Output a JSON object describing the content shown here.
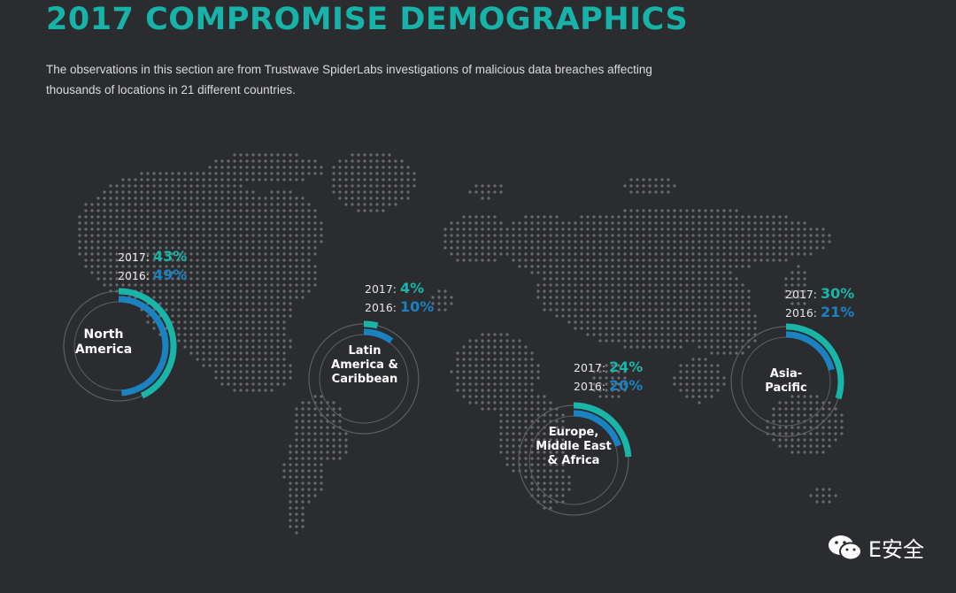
{
  "title": "2017 COMPROMISE DEMOGRAPHICS",
  "subtitle": "The observations in this section are from Trustwave SpiderLabs investigations of malicious data breaches affecting thousands of locations in 21 different countries.",
  "colors": {
    "c2017": "#19b5a8",
    "c2016": "#1a82c0",
    "ring": "#5d5e62",
    "background": "#2b2c30"
  },
  "year_labels": {
    "y2017": "2017:",
    "y2016": "2016:"
  },
  "chart_data": {
    "type": "pie",
    "series": [
      {
        "name": "2017",
        "values": [
          43,
          4,
          24,
          30
        ]
      },
      {
        "name": "2016",
        "values": [
          49,
          10,
          20,
          21
        ]
      }
    ],
    "categories": [
      "North America",
      "Latin America & Caribbean",
      "Europe, Middle East & Africa",
      "Asia-Pacific"
    ],
    "regions": [
      {
        "id": "na",
        "label_lines": [
          "North",
          "America"
        ],
        "v2017": 43,
        "v2016": 49,
        "t2017": "43%",
        "t2016": "49%"
      },
      {
        "id": "la",
        "label_lines": [
          "Latin",
          "America &",
          "Caribbean"
        ],
        "v2017": 4,
        "v2016": 10,
        "t2017": "4%",
        "t2016": "10%"
      },
      {
        "id": "emea",
        "label_lines": [
          "Europe,",
          "Middle East",
          "& Africa"
        ],
        "v2017": 24,
        "v2016": 20,
        "t2017": "24%",
        "t2016": "20%"
      },
      {
        "id": "ap",
        "label_lines": [
          "Asia-",
          "Pacific"
        ],
        "v2017": 30,
        "v2016": 21,
        "t2017": "30%",
        "t2016": "21%"
      }
    ]
  },
  "brand": {
    "icon": "wechat-icon",
    "text": "E安全"
  }
}
